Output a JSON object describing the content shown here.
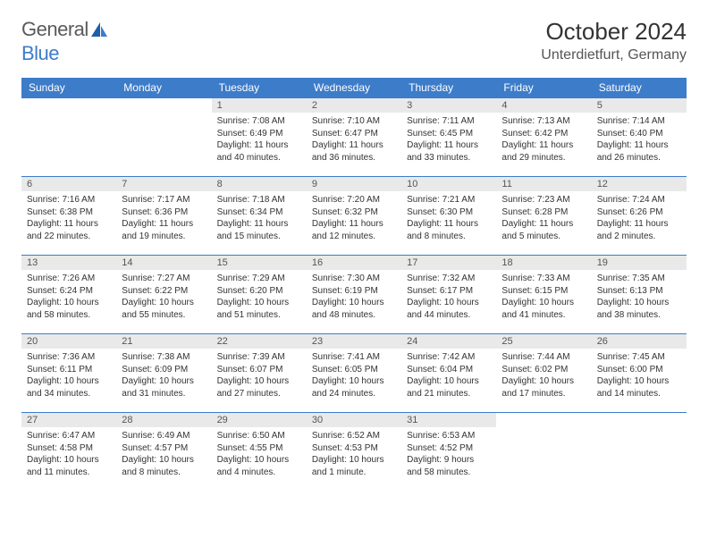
{
  "logo": {
    "text1": "General",
    "text2": "Blue"
  },
  "title": "October 2024",
  "location": "Unterdietfurt, Germany",
  "colors": {
    "header_bg": "#3d7cc9",
    "header_text": "#ffffff",
    "daynum_bg": "#e9e9e9",
    "border": "#3d7cc9",
    "body_text": "#333333",
    "logo_gray": "#5a5a5a",
    "logo_blue": "#3d7cc9"
  },
  "weekdays": [
    "Sunday",
    "Monday",
    "Tuesday",
    "Wednesday",
    "Thursday",
    "Friday",
    "Saturday"
  ],
  "weeks": [
    [
      null,
      null,
      {
        "n": "1",
        "sr": "Sunrise: 7:08 AM",
        "ss": "Sunset: 6:49 PM",
        "dl": "Daylight: 11 hours and 40 minutes."
      },
      {
        "n": "2",
        "sr": "Sunrise: 7:10 AM",
        "ss": "Sunset: 6:47 PM",
        "dl": "Daylight: 11 hours and 36 minutes."
      },
      {
        "n": "3",
        "sr": "Sunrise: 7:11 AM",
        "ss": "Sunset: 6:45 PM",
        "dl": "Daylight: 11 hours and 33 minutes."
      },
      {
        "n": "4",
        "sr": "Sunrise: 7:13 AM",
        "ss": "Sunset: 6:42 PM",
        "dl": "Daylight: 11 hours and 29 minutes."
      },
      {
        "n": "5",
        "sr": "Sunrise: 7:14 AM",
        "ss": "Sunset: 6:40 PM",
        "dl": "Daylight: 11 hours and 26 minutes."
      }
    ],
    [
      {
        "n": "6",
        "sr": "Sunrise: 7:16 AM",
        "ss": "Sunset: 6:38 PM",
        "dl": "Daylight: 11 hours and 22 minutes."
      },
      {
        "n": "7",
        "sr": "Sunrise: 7:17 AM",
        "ss": "Sunset: 6:36 PM",
        "dl": "Daylight: 11 hours and 19 minutes."
      },
      {
        "n": "8",
        "sr": "Sunrise: 7:18 AM",
        "ss": "Sunset: 6:34 PM",
        "dl": "Daylight: 11 hours and 15 minutes."
      },
      {
        "n": "9",
        "sr": "Sunrise: 7:20 AM",
        "ss": "Sunset: 6:32 PM",
        "dl": "Daylight: 11 hours and 12 minutes."
      },
      {
        "n": "10",
        "sr": "Sunrise: 7:21 AM",
        "ss": "Sunset: 6:30 PM",
        "dl": "Daylight: 11 hours and 8 minutes."
      },
      {
        "n": "11",
        "sr": "Sunrise: 7:23 AM",
        "ss": "Sunset: 6:28 PM",
        "dl": "Daylight: 11 hours and 5 minutes."
      },
      {
        "n": "12",
        "sr": "Sunrise: 7:24 AM",
        "ss": "Sunset: 6:26 PM",
        "dl": "Daylight: 11 hours and 2 minutes."
      }
    ],
    [
      {
        "n": "13",
        "sr": "Sunrise: 7:26 AM",
        "ss": "Sunset: 6:24 PM",
        "dl": "Daylight: 10 hours and 58 minutes."
      },
      {
        "n": "14",
        "sr": "Sunrise: 7:27 AM",
        "ss": "Sunset: 6:22 PM",
        "dl": "Daylight: 10 hours and 55 minutes."
      },
      {
        "n": "15",
        "sr": "Sunrise: 7:29 AM",
        "ss": "Sunset: 6:20 PM",
        "dl": "Daylight: 10 hours and 51 minutes."
      },
      {
        "n": "16",
        "sr": "Sunrise: 7:30 AM",
        "ss": "Sunset: 6:19 PM",
        "dl": "Daylight: 10 hours and 48 minutes."
      },
      {
        "n": "17",
        "sr": "Sunrise: 7:32 AM",
        "ss": "Sunset: 6:17 PM",
        "dl": "Daylight: 10 hours and 44 minutes."
      },
      {
        "n": "18",
        "sr": "Sunrise: 7:33 AM",
        "ss": "Sunset: 6:15 PM",
        "dl": "Daylight: 10 hours and 41 minutes."
      },
      {
        "n": "19",
        "sr": "Sunrise: 7:35 AM",
        "ss": "Sunset: 6:13 PM",
        "dl": "Daylight: 10 hours and 38 minutes."
      }
    ],
    [
      {
        "n": "20",
        "sr": "Sunrise: 7:36 AM",
        "ss": "Sunset: 6:11 PM",
        "dl": "Daylight: 10 hours and 34 minutes."
      },
      {
        "n": "21",
        "sr": "Sunrise: 7:38 AM",
        "ss": "Sunset: 6:09 PM",
        "dl": "Daylight: 10 hours and 31 minutes."
      },
      {
        "n": "22",
        "sr": "Sunrise: 7:39 AM",
        "ss": "Sunset: 6:07 PM",
        "dl": "Daylight: 10 hours and 27 minutes."
      },
      {
        "n": "23",
        "sr": "Sunrise: 7:41 AM",
        "ss": "Sunset: 6:05 PM",
        "dl": "Daylight: 10 hours and 24 minutes."
      },
      {
        "n": "24",
        "sr": "Sunrise: 7:42 AM",
        "ss": "Sunset: 6:04 PM",
        "dl": "Daylight: 10 hours and 21 minutes."
      },
      {
        "n": "25",
        "sr": "Sunrise: 7:44 AM",
        "ss": "Sunset: 6:02 PM",
        "dl": "Daylight: 10 hours and 17 minutes."
      },
      {
        "n": "26",
        "sr": "Sunrise: 7:45 AM",
        "ss": "Sunset: 6:00 PM",
        "dl": "Daylight: 10 hours and 14 minutes."
      }
    ],
    [
      {
        "n": "27",
        "sr": "Sunrise: 6:47 AM",
        "ss": "Sunset: 4:58 PM",
        "dl": "Daylight: 10 hours and 11 minutes."
      },
      {
        "n": "28",
        "sr": "Sunrise: 6:49 AM",
        "ss": "Sunset: 4:57 PM",
        "dl": "Daylight: 10 hours and 8 minutes."
      },
      {
        "n": "29",
        "sr": "Sunrise: 6:50 AM",
        "ss": "Sunset: 4:55 PM",
        "dl": "Daylight: 10 hours and 4 minutes."
      },
      {
        "n": "30",
        "sr": "Sunrise: 6:52 AM",
        "ss": "Sunset: 4:53 PM",
        "dl": "Daylight: 10 hours and 1 minute."
      },
      {
        "n": "31",
        "sr": "Sunrise: 6:53 AM",
        "ss": "Sunset: 4:52 PM",
        "dl": "Daylight: 9 hours and 58 minutes."
      },
      null,
      null
    ]
  ]
}
